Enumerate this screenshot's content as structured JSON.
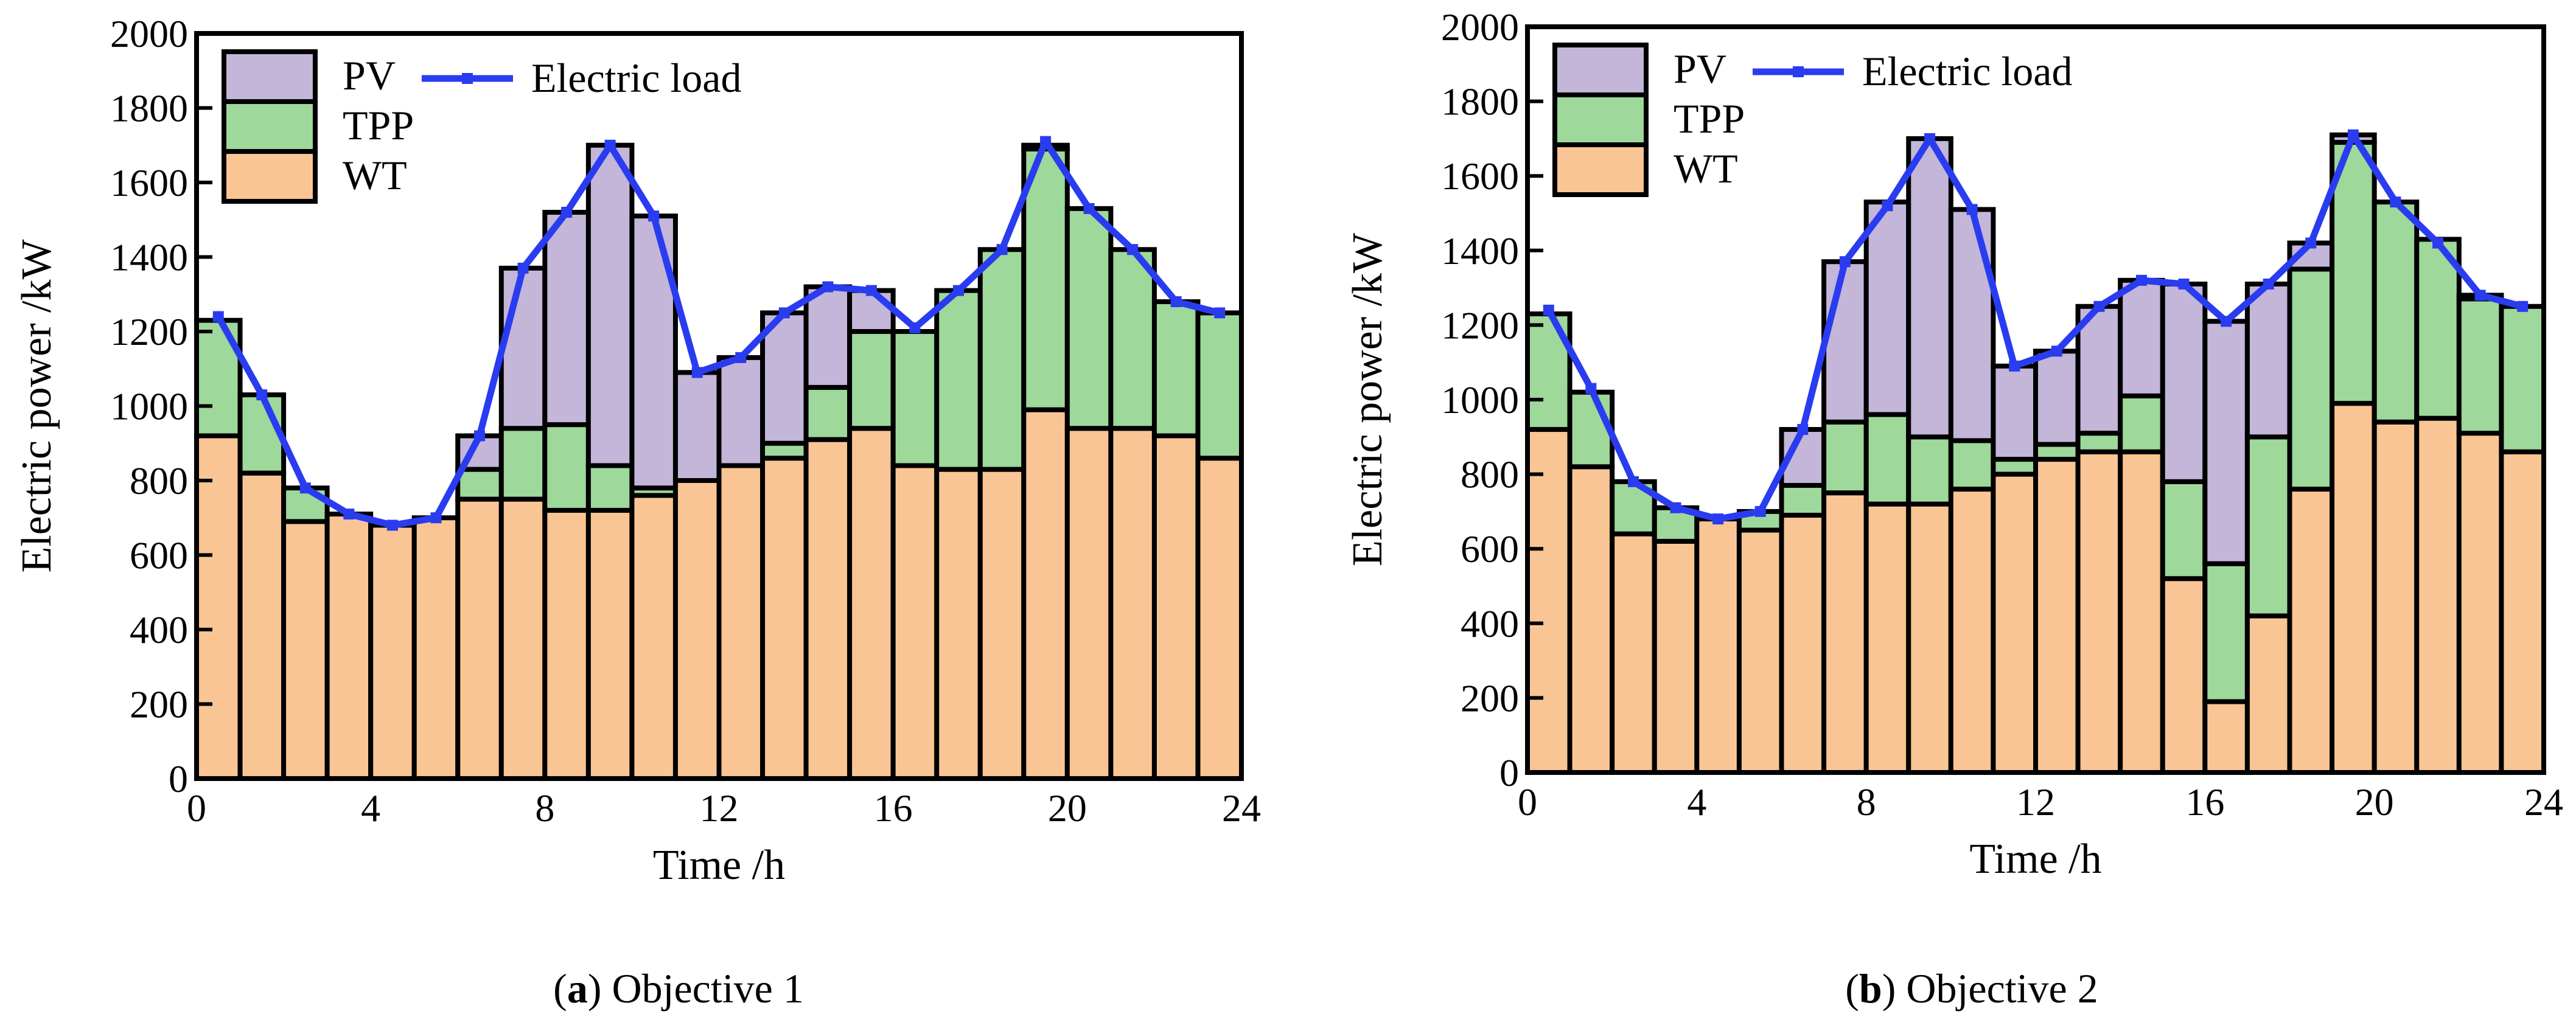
{
  "colors": {
    "pv": "#c3b6d9",
    "tpp": "#9ed89b",
    "wt": "#f9c594",
    "load": "#2a3cf0",
    "edge": "#000000"
  },
  "chart_data": [
    {
      "type": "bar",
      "stacked": true,
      "caption_letter": "a",
      "caption_rest": " Objective 1",
      "xlabel": "Time /h",
      "ylabel": "Electric power /kW",
      "xlim": [
        0,
        24
      ],
      "ylim": [
        0,
        2000
      ],
      "xticks": [
        "0",
        "4",
        "8",
        "12",
        "16",
        "20",
        "24"
      ],
      "yticks": [
        "0",
        "200",
        "400",
        "600",
        "800",
        "1000",
        "1200",
        "1400",
        "1600",
        "1800",
        "2000"
      ],
      "legend": {
        "pv": "PV",
        "tpp": "TPP",
        "wt": "WT",
        "load": "Electric load"
      },
      "hours": [
        1,
        2,
        3,
        4,
        5,
        6,
        7,
        8,
        9,
        10,
        11,
        12,
        13,
        14,
        15,
        16,
        17,
        18,
        19,
        20,
        21,
        22,
        23,
        24
      ],
      "series": [
        {
          "name": "WT",
          "values": [
            920,
            820,
            690,
            710,
            680,
            700,
            750,
            750,
            720,
            720,
            760,
            800,
            840,
            860,
            910,
            940,
            840,
            830,
            830,
            990,
            940,
            940,
            920,
            860
          ]
        },
        {
          "name": "TPP",
          "values": [
            310,
            210,
            90,
            0,
            0,
            0,
            80,
            190,
            230,
            120,
            20,
            0,
            0,
            40,
            140,
            260,
            360,
            480,
            590,
            700,
            590,
            480,
            360,
            390
          ]
        },
        {
          "name": "PV",
          "values": [
            0,
            0,
            0,
            0,
            0,
            0,
            90,
            430,
            570,
            860,
            730,
            290,
            290,
            350,
            270,
            110,
            0,
            0,
            0,
            10,
            0,
            0,
            0,
            0
          ]
        }
      ],
      "load": [
        1240,
        1030,
        780,
        710,
        680,
        700,
        920,
        1370,
        1520,
        1700,
        1510,
        1090,
        1130,
        1250,
        1320,
        1310,
        1210,
        1310,
        1420,
        1710,
        1530,
        1420,
        1280,
        1250
      ]
    },
    {
      "type": "bar",
      "stacked": true,
      "caption_letter": "b",
      "caption_rest": " Objective 2",
      "xlabel": "Time /h",
      "ylabel": "Electric power /kW",
      "xlim": [
        0,
        24
      ],
      "ylim": [
        0,
        2000
      ],
      "xticks": [
        "0",
        "4",
        "8",
        "12",
        "16",
        "20",
        "24"
      ],
      "yticks": [
        "0",
        "200",
        "400",
        "600",
        "800",
        "1000",
        "1200",
        "1400",
        "1600",
        "1800",
        "2000"
      ],
      "legend": {
        "pv": "PV",
        "tpp": "TPP",
        "wt": "WT",
        "load": "Electric load"
      },
      "hours": [
        1,
        2,
        3,
        4,
        5,
        6,
        7,
        8,
        9,
        10,
        11,
        12,
        13,
        14,
        15,
        16,
        17,
        18,
        19,
        20,
        21,
        22,
        23,
        24
      ],
      "series": [
        {
          "name": "WT",
          "values": [
            920,
            820,
            640,
            620,
            680,
            650,
            690,
            750,
            720,
            720,
            760,
            800,
            840,
            860,
            860,
            520,
            190,
            420,
            760,
            990,
            940,
            950,
            910,
            860
          ]
        },
        {
          "name": "TPP",
          "values": [
            310,
            200,
            140,
            90,
            0,
            50,
            80,
            190,
            240,
            180,
            130,
            40,
            40,
            50,
            150,
            260,
            370,
            480,
            590,
            700,
            590,
            480,
            360,
            390
          ]
        },
        {
          "name": "PV",
          "values": [
            0,
            0,
            0,
            0,
            0,
            0,
            150,
            430,
            570,
            800,
            620,
            250,
            250,
            340,
            310,
            530,
            650,
            410,
            70,
            20,
            0,
            0,
            10,
            0
          ]
        }
      ],
      "load": [
        1240,
        1030,
        780,
        710,
        680,
        700,
        920,
        1370,
        1520,
        1700,
        1510,
        1090,
        1130,
        1250,
        1320,
        1310,
        1210,
        1310,
        1420,
        1710,
        1530,
        1420,
        1280,
        1250
      ]
    }
  ]
}
